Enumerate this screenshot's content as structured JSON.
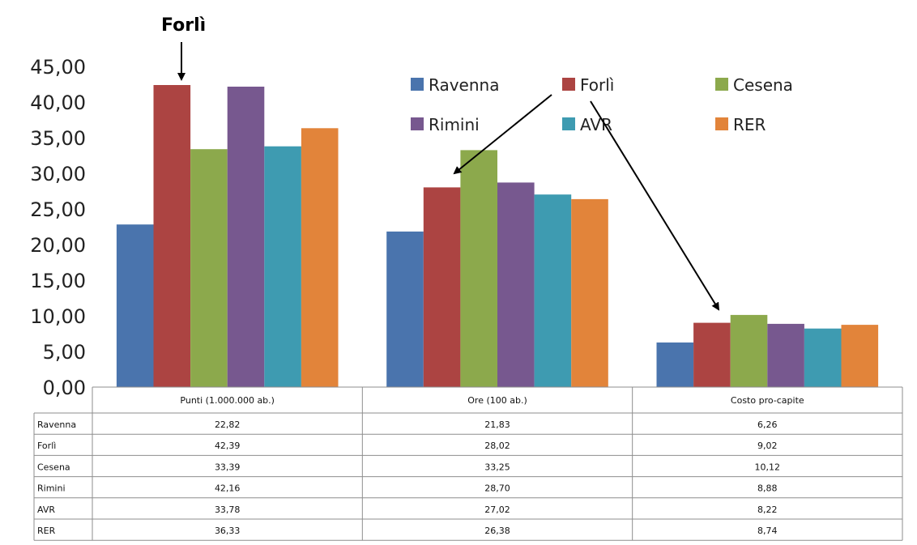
{
  "annotation": "Forlì",
  "chart_data": {
    "type": "bar",
    "categories": [
      "Punti (1.000.000 ab.)",
      "Ore (100 ab.)",
      "Costo pro-capite"
    ],
    "series": [
      {
        "name": "Ravenna",
        "color": "#4A74AD",
        "values": [
          22.82,
          21.83,
          6.26
        ],
        "labels": [
          "22,82",
          "21,83",
          "6,26"
        ]
      },
      {
        "name": "Forlì",
        "color": "#AC4442",
        "values": [
          42.39,
          28.02,
          9.02
        ],
        "labels": [
          "42,39",
          "28,02",
          "9,02"
        ]
      },
      {
        "name": "Cesena",
        "color": "#8CA94C",
        "values": [
          33.39,
          33.25,
          10.12
        ],
        "labels": [
          "33,39",
          "33,25",
          "10,12"
        ]
      },
      {
        "name": "Rimini",
        "color": "#77588F",
        "values": [
          42.16,
          28.7,
          8.88
        ],
        "labels": [
          "42,16",
          "28,70",
          "8,88"
        ]
      },
      {
        "name": "AVR",
        "color": "#3E9BB1",
        "values": [
          33.78,
          27.02,
          8.22
        ],
        "labels": [
          "33,78",
          "27,02",
          "8,22"
        ]
      },
      {
        "name": "RER",
        "color": "#E2843A",
        "values": [
          36.33,
          26.38,
          8.74
        ],
        "labels": [
          "36,33",
          "26,38",
          "8,74"
        ]
      }
    ],
    "ylim": [
      0,
      45
    ],
    "yticks": [
      "0,00",
      "5,00",
      "10,00",
      "15,00",
      "20,00",
      "25,00",
      "30,00",
      "35,00",
      "40,00",
      "45,00"
    ],
    "grid": false,
    "legend": "top-right",
    "data_table": true
  }
}
